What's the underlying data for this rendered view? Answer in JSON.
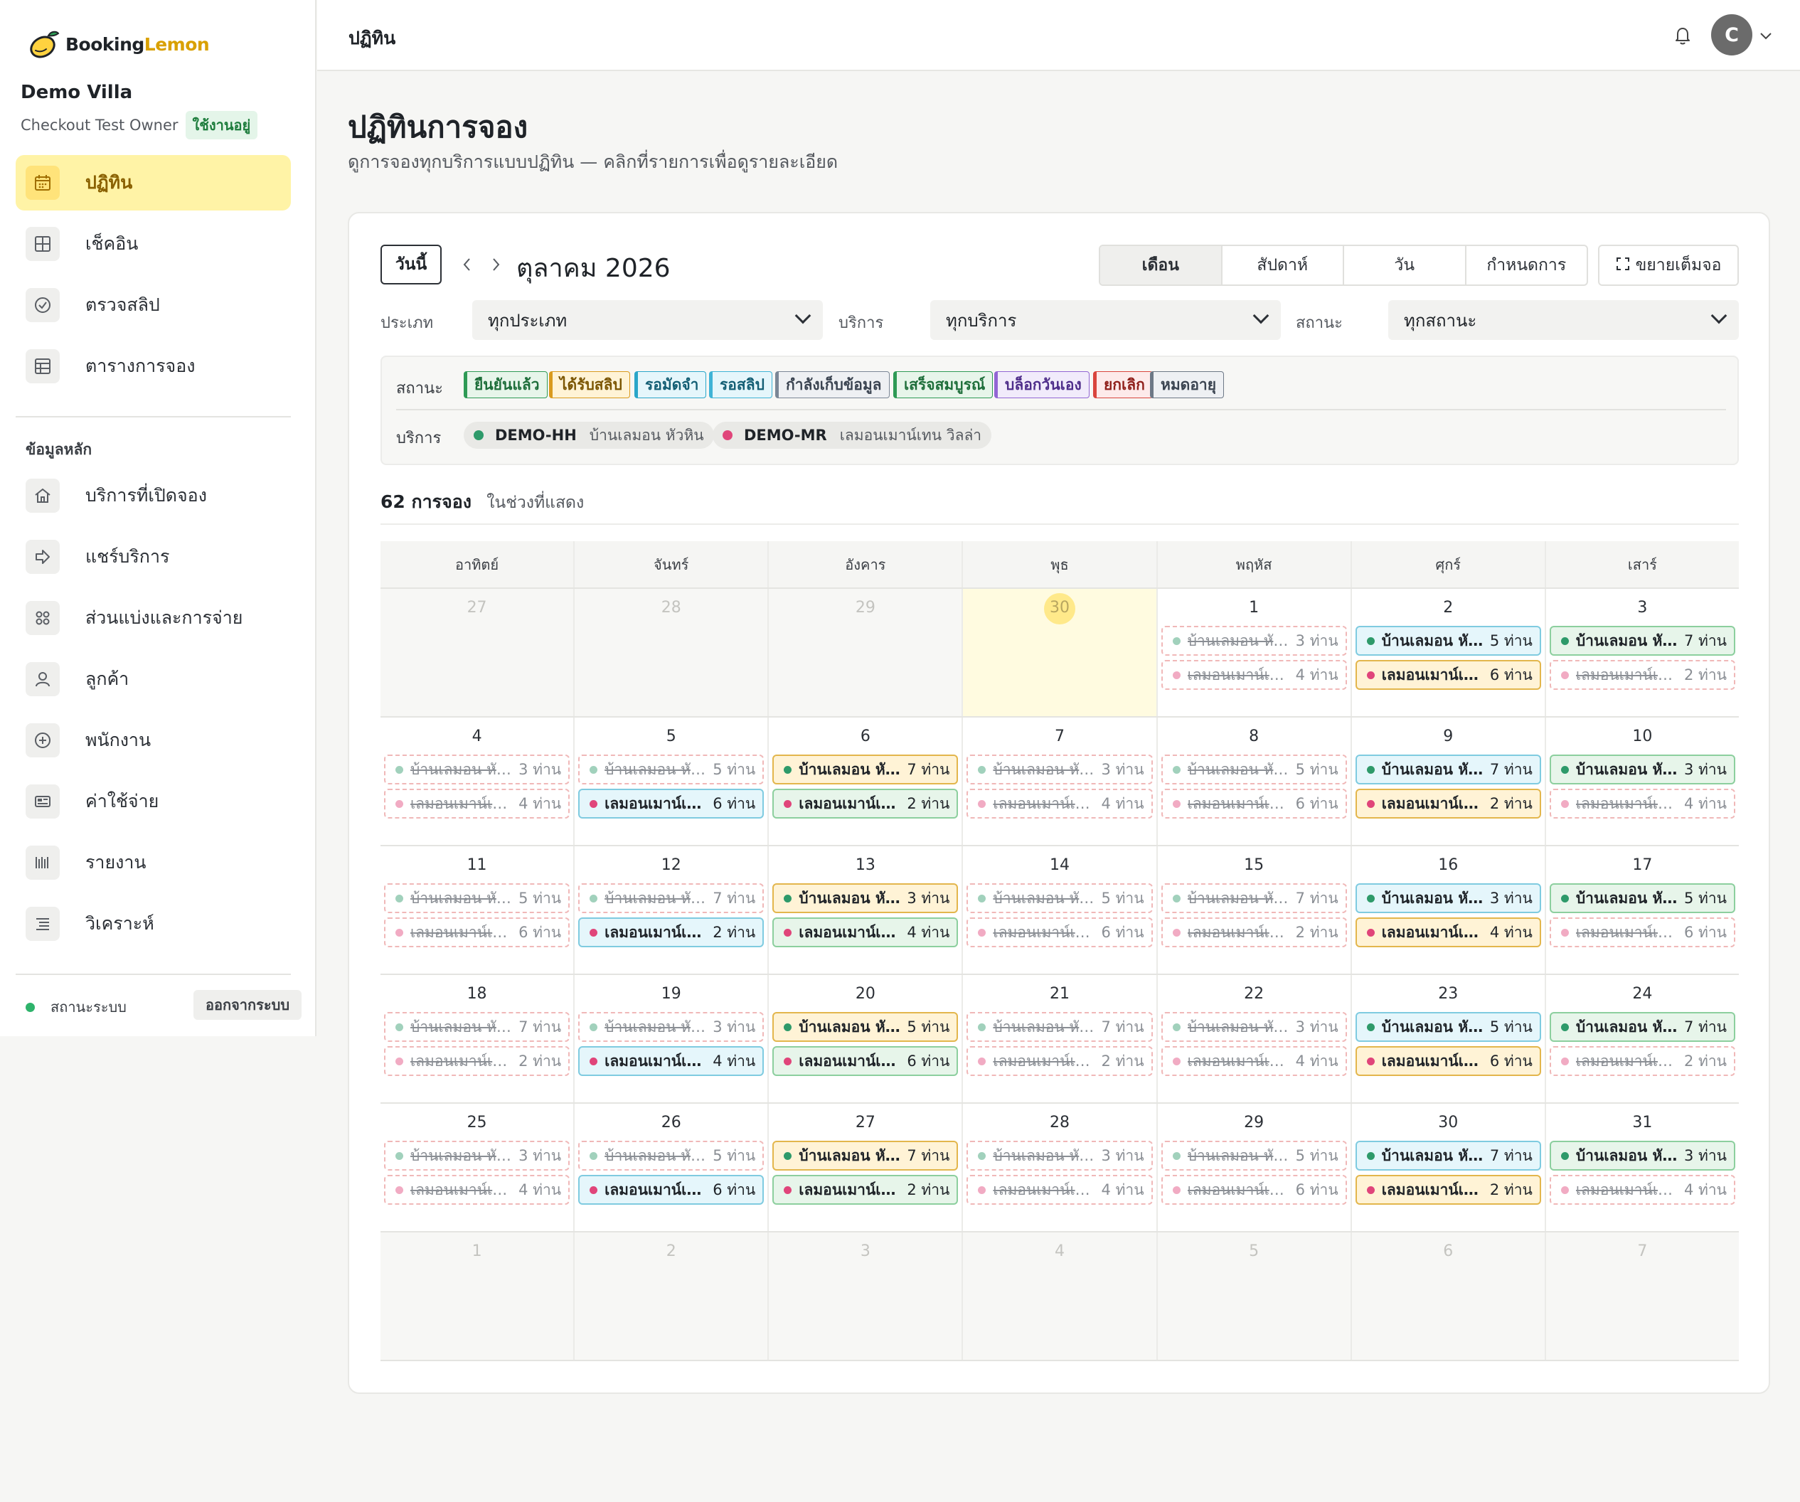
{
  "brand": {
    "word_black": "Booking",
    "word_yellow": "Lemon"
  },
  "sidebar": {
    "villa_name": "Demo Villa",
    "owner": "Checkout Test Owner",
    "owner_badge": "ใช้งานอยู่",
    "items": [
      {
        "label": "ปฏิทิน",
        "icon": "calendar-icon",
        "active": true
      },
      {
        "label": "เช็คอิน",
        "icon": "grid-icon"
      },
      {
        "label": "ตรวจสลิป",
        "icon": "check-circle-icon"
      },
      {
        "label": "ตารางการจอง",
        "icon": "table-icon"
      }
    ],
    "section_label": "ข้อมูลหลัก",
    "master_items": [
      {
        "label": "บริการที่เปิดจอง",
        "icon": "home-icon"
      },
      {
        "label": "แชร์บริการ",
        "icon": "share-icon"
      },
      {
        "label": "ส่วนแบ่งและการจ่าย",
        "icon": "apps-icon"
      },
      {
        "label": "ลูกค้า",
        "icon": "user-icon"
      },
      {
        "label": "พนักงาน",
        "icon": "plus-circle-icon"
      },
      {
        "label": "ค่าใช้จ่าย",
        "icon": "receipt-icon"
      },
      {
        "label": "รายงาน",
        "icon": "barcode-icon"
      },
      {
        "label": "วิเคราะห์",
        "icon": "list-icon"
      }
    ],
    "system_status": "สถานะระบบ",
    "logout": "ออกจากระบบ"
  },
  "topbar": {
    "title": "ปฏิทิน",
    "avatar_letter": "C"
  },
  "page": {
    "title": "ปฏิทินการจอง",
    "subtitle": "ดูการจองทุกบริการแบบปฏิทิน — คลิกที่รายการเพื่อดูรายละเอียด"
  },
  "toolbar": {
    "today": "วันนี้",
    "month_label": "ตุลาคม 2026",
    "views": [
      "เดือน",
      "สัปดาห์",
      "วัน",
      "กำหนดการ"
    ],
    "active_view": "เดือน",
    "fullscreen": "ขยายเต็มจอ"
  },
  "filters": {
    "type_label": "ประเภท",
    "type_value": "ทุกประเภท",
    "service_label": "บริการ",
    "service_value": "ทุกบริการ",
    "status_label": "สถานะ",
    "status_value": "ทุกสถานะ"
  },
  "legend": {
    "status_label": "สถานะ",
    "statuses": [
      {
        "label": "ยืนยันแล้ว",
        "bg": "#e7f5ea",
        "border": "#2e9a55",
        "color": "#1e6e3a"
      },
      {
        "label": "ได้รับสลิป",
        "bg": "#fff3d6",
        "border": "#d99a1e",
        "color": "#7a5400"
      },
      {
        "label": "รอมัดจำ",
        "bg": "#e5f6fb",
        "border": "#2aa6c9",
        "color": "#135e74"
      },
      {
        "label": "รอสลิป",
        "bg": "#e5f6fb",
        "border": "#3fb3d6",
        "color": "#135e74"
      },
      {
        "label": "กำลังเก็บข้อมูล",
        "bg": "#eef0f3",
        "border": "#7b8796",
        "color": "#3a4350"
      },
      {
        "label": "เสร็จสมบูรณ์",
        "bg": "#e7f5ea",
        "border": "#2e9a55",
        "color": "#1e6e3a"
      },
      {
        "label": "บล็อกวันเอง",
        "bg": "#f1ebfb",
        "border": "#9266d4",
        "color": "#4e2d8a"
      },
      {
        "label": "ยกเลิก",
        "bg": "#fdeaea",
        "border": "#d9453d",
        "color": "#8f1f1a"
      },
      {
        "label": "หมดอายุ",
        "bg": "#eef0f3",
        "border": "#6d7886",
        "color": "#3a4350"
      }
    ],
    "service_label": "บริการ",
    "services": [
      {
        "code": "DEMO-HH",
        "name": "บ้านเลมอน หัวหิน",
        "color": "#2e9a6a"
      },
      {
        "code": "DEMO-MR",
        "name": "เลมอนเมาน์เทน วิลล่า",
        "color": "#e0457a"
      }
    ]
  },
  "summary": {
    "count": "62 การจอง",
    "suffix": "ในช่วงที่แสดง"
  },
  "calendar": {
    "weekdays": [
      "อาทิตย์",
      "จันทร์",
      "อังคาร",
      "พุธ",
      "พฤหัส",
      "ศุกร์",
      "เสาร์"
    ],
    "hh_name": "บ้านเลมอน หัว...",
    "mr_name": "เลมอนเมาน์เท...",
    "weeks": [
      [
        {
          "day": "27",
          "outside": true
        },
        {
          "day": "28",
          "outside": true
        },
        {
          "day": "29",
          "outside": true
        },
        {
          "day": "30",
          "outside": true,
          "today": true
        },
        {
          "day": "1",
          "hh": {
            "people": "3 ท่าน",
            "status": "cancelled"
          },
          "mr": {
            "people": "4 ท่าน",
            "status": "cancelled"
          }
        },
        {
          "day": "2",
          "hh": {
            "people": "5 ท่าน",
            "status": "pending"
          },
          "mr": {
            "people": "6 ท่าน",
            "status": "slip"
          }
        },
        {
          "day": "3",
          "hh": {
            "people": "7 ท่าน",
            "status": "confirmed"
          },
          "mr": {
            "people": "2 ท่าน",
            "status": "cancelled"
          }
        }
      ],
      [
        {
          "day": "4",
          "hh": {
            "people": "3 ท่าน",
            "status": "cancelled"
          },
          "mr": {
            "people": "4 ท่าน",
            "status": "cancelled"
          }
        },
        {
          "day": "5",
          "hh": {
            "people": "5 ท่าน",
            "status": "cancelled"
          },
          "mr": {
            "people": "6 ท่าน",
            "status": "pending"
          }
        },
        {
          "day": "6",
          "hh": {
            "people": "7 ท่าน",
            "status": "slip"
          },
          "mr": {
            "people": "2 ท่าน",
            "status": "confirmed"
          }
        },
        {
          "day": "7",
          "hh": {
            "people": "3 ท่าน",
            "status": "cancelled"
          },
          "mr": {
            "people": "4 ท่าน",
            "status": "cancelled"
          }
        },
        {
          "day": "8",
          "hh": {
            "people": "5 ท่าน",
            "status": "cancelled"
          },
          "mr": {
            "people": "6 ท่าน",
            "status": "cancelled"
          }
        },
        {
          "day": "9",
          "hh": {
            "people": "7 ท่าน",
            "status": "pending"
          },
          "mr": {
            "people": "2 ท่าน",
            "status": "slip"
          }
        },
        {
          "day": "10",
          "hh": {
            "people": "3 ท่าน",
            "status": "confirmed"
          },
          "mr": {
            "people": "4 ท่าน",
            "status": "cancelled"
          }
        }
      ],
      [
        {
          "day": "11",
          "hh": {
            "people": "5 ท่าน",
            "status": "cancelled"
          },
          "mr": {
            "people": "6 ท่าน",
            "status": "cancelled"
          }
        },
        {
          "day": "12",
          "hh": {
            "people": "7 ท่าน",
            "status": "cancelled"
          },
          "mr": {
            "people": "2 ท่าน",
            "status": "pending"
          }
        },
        {
          "day": "13",
          "hh": {
            "people": "3 ท่าน",
            "status": "slip"
          },
          "mr": {
            "people": "4 ท่าน",
            "status": "confirmed"
          }
        },
        {
          "day": "14",
          "hh": {
            "people": "5 ท่าน",
            "status": "cancelled"
          },
          "mr": {
            "people": "6 ท่าน",
            "status": "cancelled"
          }
        },
        {
          "day": "15",
          "hh": {
            "people": "7 ท่าน",
            "status": "cancelled"
          },
          "mr": {
            "people": "2 ท่าน",
            "status": "cancelled"
          }
        },
        {
          "day": "16",
          "hh": {
            "people": "3 ท่าน",
            "status": "pending"
          },
          "mr": {
            "people": "4 ท่าน",
            "status": "slip"
          }
        },
        {
          "day": "17",
          "hh": {
            "people": "5 ท่าน",
            "status": "confirmed"
          },
          "mr": {
            "people": "6 ท่าน",
            "status": "cancelled"
          }
        }
      ],
      [
        {
          "day": "18",
          "hh": {
            "people": "7 ท่าน",
            "status": "cancelled"
          },
          "mr": {
            "people": "2 ท่าน",
            "status": "cancelled"
          }
        },
        {
          "day": "19",
          "hh": {
            "people": "3 ท่าน",
            "status": "cancelled"
          },
          "mr": {
            "people": "4 ท่าน",
            "status": "pending"
          }
        },
        {
          "day": "20",
          "hh": {
            "people": "5 ท่าน",
            "status": "slip"
          },
          "mr": {
            "people": "6 ท่าน",
            "status": "confirmed"
          }
        },
        {
          "day": "21",
          "hh": {
            "people": "7 ท่าน",
            "status": "cancelled"
          },
          "mr": {
            "people": "2 ท่าน",
            "status": "cancelled"
          }
        },
        {
          "day": "22",
          "hh": {
            "people": "3 ท่าน",
            "status": "cancelled"
          },
          "mr": {
            "people": "4 ท่าน",
            "status": "cancelled"
          }
        },
        {
          "day": "23",
          "hh": {
            "people": "5 ท่าน",
            "status": "pending"
          },
          "mr": {
            "people": "6 ท่าน",
            "status": "slip"
          }
        },
        {
          "day": "24",
          "hh": {
            "people": "7 ท่าน",
            "status": "confirmed"
          },
          "mr": {
            "people": "2 ท่าน",
            "status": "cancelled"
          }
        }
      ],
      [
        {
          "day": "25",
          "hh": {
            "people": "3 ท่าน",
            "status": "cancelled"
          },
          "mr": {
            "people": "4 ท่าน",
            "status": "cancelled"
          }
        },
        {
          "day": "26",
          "hh": {
            "people": "5 ท่าน",
            "status": "cancelled"
          },
          "mr": {
            "people": "6 ท่าน",
            "status": "pending"
          }
        },
        {
          "day": "27",
          "hh": {
            "people": "7 ท่าน",
            "status": "slip"
          },
          "mr": {
            "people": "2 ท่าน",
            "status": "confirmed"
          }
        },
        {
          "day": "28",
          "hh": {
            "people": "3 ท่าน",
            "status": "cancelled"
          },
          "mr": {
            "people": "4 ท่าน",
            "status": "cancelled"
          }
        },
        {
          "day": "29",
          "hh": {
            "people": "5 ท่าน",
            "status": "cancelled"
          },
          "mr": {
            "people": "6 ท่าน",
            "status": "cancelled"
          }
        },
        {
          "day": "30",
          "hh": {
            "people": "7 ท่าน",
            "status": "pending"
          },
          "mr": {
            "people": "2 ท่าน",
            "status": "slip"
          }
        },
        {
          "day": "31",
          "hh": {
            "people": "3 ท่าน",
            "status": "confirmed"
          },
          "mr": {
            "people": "4 ท่าน",
            "status": "cancelled"
          }
        }
      ],
      [
        {
          "day": "1",
          "outside": true
        },
        {
          "day": "2",
          "outside": true
        },
        {
          "day": "3",
          "outside": true
        },
        {
          "day": "4",
          "outside": true
        },
        {
          "day": "5",
          "outside": true
        },
        {
          "day": "6",
          "outside": true
        },
        {
          "day": "7",
          "outside": true
        }
      ]
    ]
  }
}
